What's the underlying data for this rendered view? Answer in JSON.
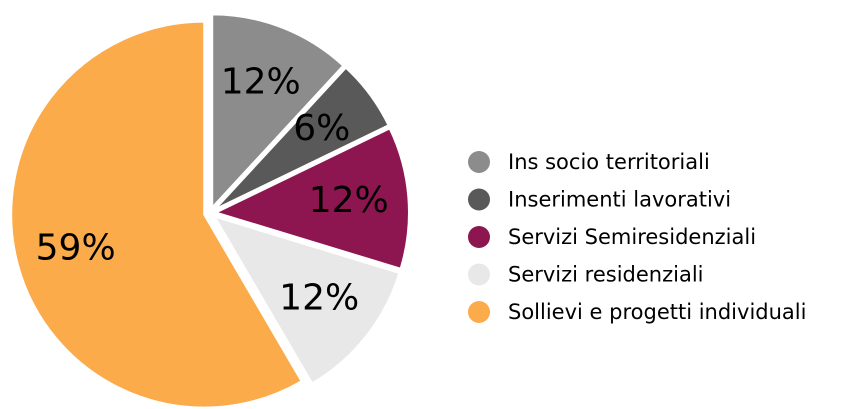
{
  "chart_data": {
    "type": "pie",
    "categories": [
      "Ins socio territoriali",
      "Inserimenti lavorativi",
      "Servizi Semiresidenziali",
      "Servizi residenziali",
      "Sollievi e progetti individuali"
    ],
    "values": [
      12,
      6,
      12,
      12,
      59
    ],
    "value_labels": [
      "12%",
      "6%",
      "12%",
      "12%",
      "59%"
    ],
    "colors": [
      "#8c8c8c",
      "#595959",
      "#8e1650",
      "#e8e8e8",
      "#fbab4a"
    ],
    "legend": "right"
  }
}
